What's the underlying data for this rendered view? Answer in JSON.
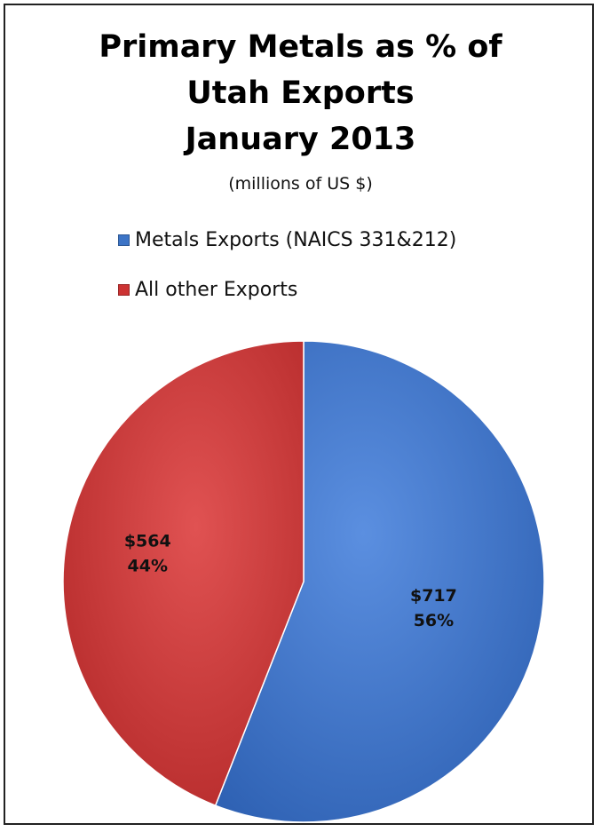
{
  "chart_data": {
    "type": "pie",
    "title": [
      "Primary Metals as % of",
      "Utah Exports",
      "January 2013"
    ],
    "subtitle": "(millions of US $)",
    "legend_position": "top",
    "slices": [
      {
        "name": "Metals Exports (NAICS 331&212)",
        "value": 717,
        "percent": 56,
        "value_label": "$717",
        "percent_label": "56%",
        "color": "#3c74c6"
      },
      {
        "name": "All other Exports",
        "value": 564,
        "percent": 44,
        "value_label": "$564",
        "percent_label": "44%",
        "color": "#cc3333"
      }
    ]
  }
}
